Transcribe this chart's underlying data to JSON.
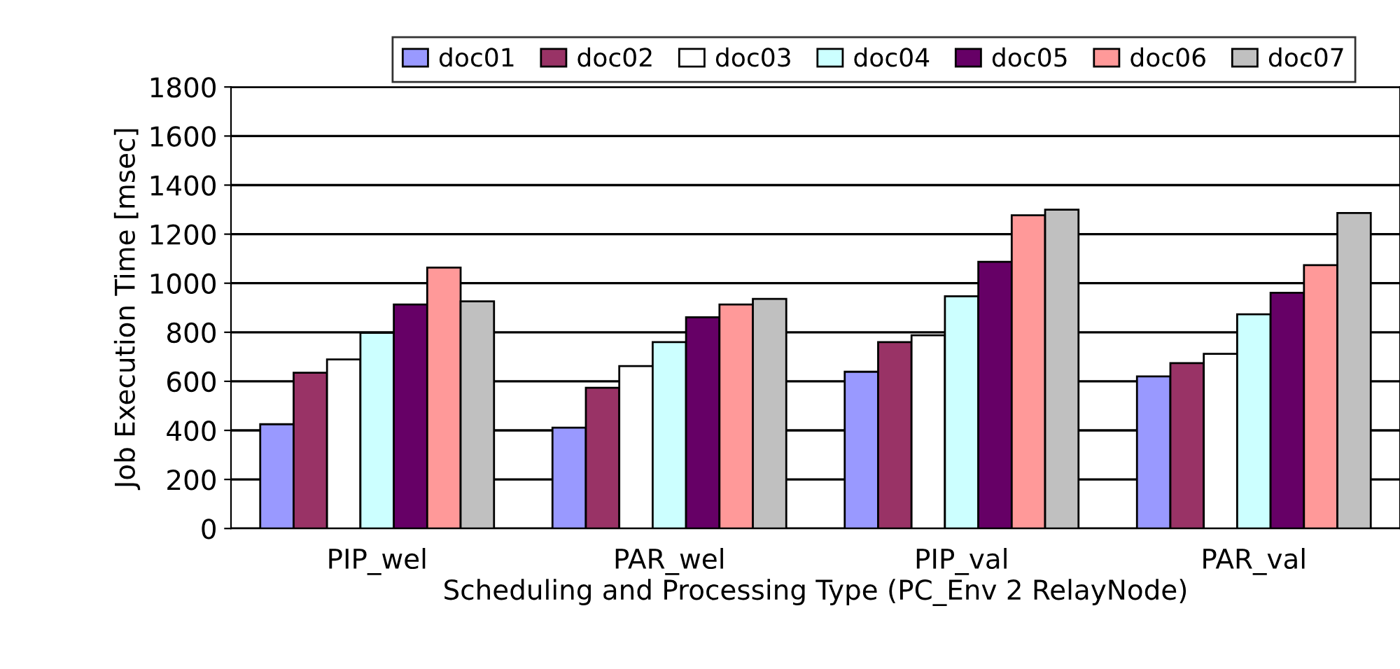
{
  "chart_data": {
    "type": "bar",
    "xlabel": "Scheduling and Processing Type (PC_Env 2 RelayNode)",
    "ylabel": "Job Execution Time [msec]",
    "categories": [
      "PIP_wel",
      "PAR_wel",
      "PIP_val",
      "PAR_val"
    ],
    "series": [
      {
        "name": "doc01",
        "color": "#9999ff",
        "values": [
          425,
          411,
          639,
          620
        ]
      },
      {
        "name": "doc02",
        "color": "#993366",
        "values": [
          635,
          574,
          760,
          674
        ]
      },
      {
        "name": "doc03",
        "color": "#ffffff",
        "values": [
          689,
          662,
          788,
          712
        ]
      },
      {
        "name": "doc04",
        "color": "#ccffff",
        "values": [
          798,
          760,
          947,
          873
        ]
      },
      {
        "name": "doc05",
        "color": "#660066",
        "values": [
          913,
          861,
          1087,
          961
        ]
      },
      {
        "name": "doc06",
        "color": "#ff9999",
        "values": [
          1064,
          913,
          1277,
          1074
        ]
      },
      {
        "name": "doc07",
        "color": "#c0c0c0",
        "values": [
          926,
          936,
          1300,
          1286
        ]
      }
    ],
    "ylim": [
      0,
      1800
    ],
    "yticks": [
      0,
      200,
      400,
      600,
      800,
      1000,
      1200,
      1400,
      1600,
      1800
    ],
    "grid": "y",
    "legend": "top"
  }
}
